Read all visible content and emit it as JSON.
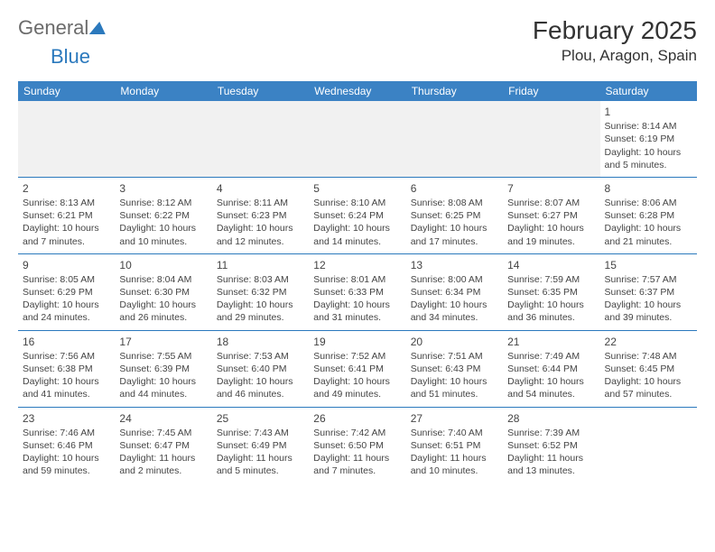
{
  "logo": {
    "text_gray": "General",
    "text_blue": "Blue"
  },
  "header": {
    "month_title": "February 2025",
    "location": "Plou, Aragon, Spain"
  },
  "styling": {
    "header_bg": "#3b82c4",
    "header_text": "#ffffff",
    "row_border": "#2b79bd",
    "empty_row_bg": "#f1f1f1",
    "body_text": "#444444",
    "logo_gray": "#6b6b6b",
    "logo_blue": "#2b79bd",
    "title_color": "#333333",
    "day_font_size": 12,
    "cell_font_size": 10.5,
    "header_font_size": 12,
    "month_font_size": 28,
    "location_font_size": 17
  },
  "weekdays": [
    "Sunday",
    "Monday",
    "Tuesday",
    "Wednesday",
    "Thursday",
    "Friday",
    "Saturday"
  ],
  "weeks": [
    [
      null,
      null,
      null,
      null,
      null,
      null,
      {
        "n": "1",
        "sr": "8:14 AM",
        "ss": "6:19 PM",
        "dl": "10 hours and 5 minutes."
      }
    ],
    [
      {
        "n": "2",
        "sr": "8:13 AM",
        "ss": "6:21 PM",
        "dl": "10 hours and 7 minutes."
      },
      {
        "n": "3",
        "sr": "8:12 AM",
        "ss": "6:22 PM",
        "dl": "10 hours and 10 minutes."
      },
      {
        "n": "4",
        "sr": "8:11 AM",
        "ss": "6:23 PM",
        "dl": "10 hours and 12 minutes."
      },
      {
        "n": "5",
        "sr": "8:10 AM",
        "ss": "6:24 PM",
        "dl": "10 hours and 14 minutes."
      },
      {
        "n": "6",
        "sr": "8:08 AM",
        "ss": "6:25 PM",
        "dl": "10 hours and 17 minutes."
      },
      {
        "n": "7",
        "sr": "8:07 AM",
        "ss": "6:27 PM",
        "dl": "10 hours and 19 minutes."
      },
      {
        "n": "8",
        "sr": "8:06 AM",
        "ss": "6:28 PM",
        "dl": "10 hours and 21 minutes."
      }
    ],
    [
      {
        "n": "9",
        "sr": "8:05 AM",
        "ss": "6:29 PM",
        "dl": "10 hours and 24 minutes."
      },
      {
        "n": "10",
        "sr": "8:04 AM",
        "ss": "6:30 PM",
        "dl": "10 hours and 26 minutes."
      },
      {
        "n": "11",
        "sr": "8:03 AM",
        "ss": "6:32 PM",
        "dl": "10 hours and 29 minutes."
      },
      {
        "n": "12",
        "sr": "8:01 AM",
        "ss": "6:33 PM",
        "dl": "10 hours and 31 minutes."
      },
      {
        "n": "13",
        "sr": "8:00 AM",
        "ss": "6:34 PM",
        "dl": "10 hours and 34 minutes."
      },
      {
        "n": "14",
        "sr": "7:59 AM",
        "ss": "6:35 PM",
        "dl": "10 hours and 36 minutes."
      },
      {
        "n": "15",
        "sr": "7:57 AM",
        "ss": "6:37 PM",
        "dl": "10 hours and 39 minutes."
      }
    ],
    [
      {
        "n": "16",
        "sr": "7:56 AM",
        "ss": "6:38 PM",
        "dl": "10 hours and 41 minutes."
      },
      {
        "n": "17",
        "sr": "7:55 AM",
        "ss": "6:39 PM",
        "dl": "10 hours and 44 minutes."
      },
      {
        "n": "18",
        "sr": "7:53 AM",
        "ss": "6:40 PM",
        "dl": "10 hours and 46 minutes."
      },
      {
        "n": "19",
        "sr": "7:52 AM",
        "ss": "6:41 PM",
        "dl": "10 hours and 49 minutes."
      },
      {
        "n": "20",
        "sr": "7:51 AM",
        "ss": "6:43 PM",
        "dl": "10 hours and 51 minutes."
      },
      {
        "n": "21",
        "sr": "7:49 AM",
        "ss": "6:44 PM",
        "dl": "10 hours and 54 minutes."
      },
      {
        "n": "22",
        "sr": "7:48 AM",
        "ss": "6:45 PM",
        "dl": "10 hours and 57 minutes."
      }
    ],
    [
      {
        "n": "23",
        "sr": "7:46 AM",
        "ss": "6:46 PM",
        "dl": "10 hours and 59 minutes."
      },
      {
        "n": "24",
        "sr": "7:45 AM",
        "ss": "6:47 PM",
        "dl": "11 hours and 2 minutes."
      },
      {
        "n": "25",
        "sr": "7:43 AM",
        "ss": "6:49 PM",
        "dl": "11 hours and 5 minutes."
      },
      {
        "n": "26",
        "sr": "7:42 AM",
        "ss": "6:50 PM",
        "dl": "11 hours and 7 minutes."
      },
      {
        "n": "27",
        "sr": "7:40 AM",
        "ss": "6:51 PM",
        "dl": "11 hours and 10 minutes."
      },
      {
        "n": "28",
        "sr": "7:39 AM",
        "ss": "6:52 PM",
        "dl": "11 hours and 13 minutes."
      },
      null
    ]
  ],
  "labels": {
    "sunrise": "Sunrise:",
    "sunset": "Sunset:",
    "daylight": "Daylight:"
  }
}
